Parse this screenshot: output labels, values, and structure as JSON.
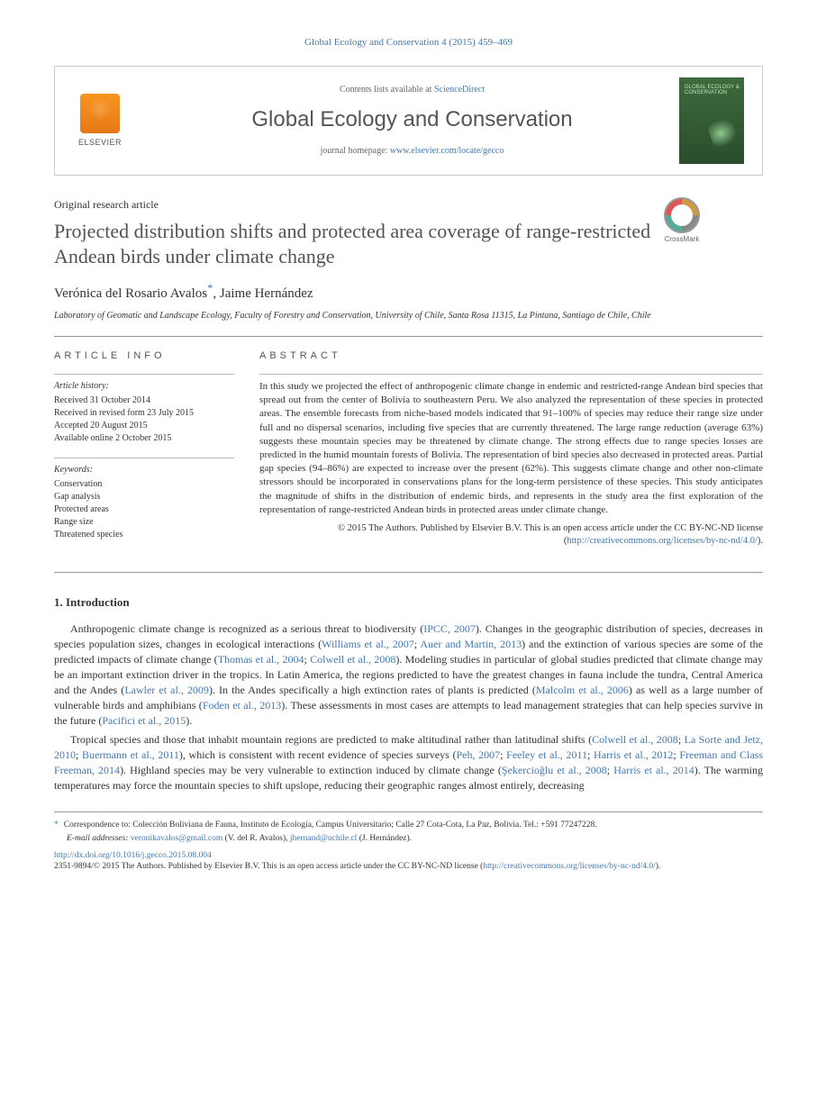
{
  "header": {
    "citation": "Global Ecology and Conservation 4 (2015) 459–469",
    "contents_prefix": "Contents lists available at ",
    "contents_link": "ScienceDirect",
    "journal_name": "Global Ecology and Conservation",
    "homepage_prefix": "journal homepage: ",
    "homepage_url": "www.elsevier.com/locate/gecco",
    "elsevier_label": "ELSEVIER",
    "cover_title": "GLOBAL\nECOLOGY &\nCONSERVATION"
  },
  "crossmark_label": "CrossMark",
  "article": {
    "type": "Original research article",
    "title": "Projected distribution shifts and protected area coverage of range-restricted Andean birds under climate change",
    "authors_html": "Verónica del Rosario Avalos",
    "corr_symbol": "*",
    "author2": ", Jaime Hernández",
    "affiliation": "Laboratory of Geomatic and Landscape Ecology, Faculty of Forestry and Conservation, University of Chile, Santa Rosa 11315, La Pintana, Santiago de Chile, Chile"
  },
  "info": {
    "heading": "article info",
    "history_label": "Article history:",
    "history": [
      "Received 31 October 2014",
      "Received in revised form 23 July 2015",
      "Accepted 20 August 2015",
      "Available online 2 October 2015"
    ],
    "keywords_label": "Keywords:",
    "keywords": [
      "Conservation",
      "Gap analysis",
      "Protected areas",
      "Range size",
      "Threatened species"
    ]
  },
  "abstract": {
    "heading": "abstract",
    "text": "In this study we projected the effect of anthropogenic climate change in endemic and restricted-range Andean bird species that spread out from the center of Bolivia to southeastern Peru. We also analyzed the representation of these species in protected areas. The ensemble forecasts from niche-based models indicated that 91–100% of species may reduce their range size under full and no dispersal scenarios, including five species that are currently threatened. The large range reduction (average 63%) suggests these mountain species may be threatened by climate change. The strong effects due to range species losses are predicted in the humid mountain forests of Bolivia. The representation of bird species also decreased in protected areas. Partial gap species (94–86%) are expected to increase over the present (62%). This suggests climate change and other non-climate stressors should be incorporated in conservations plans for the long-term persistence of these species. This study anticipates the magnitude of shifts in the distribution of endemic birds, and represents in the study area the first exploration of the representation of range-restricted Andean birds in protected areas under climate change.",
    "copyright": "© 2015 The Authors. Published by Elsevier B.V. This is an open access article under the CC BY-NC-ND license (",
    "license_url": "http://creativecommons.org/licenses/by-nc-nd/4.0/",
    "copyright_close": ")."
  },
  "section1": {
    "heading": "1. Introduction",
    "para1_parts": [
      "Anthropogenic climate change is recognized as a serious threat to biodiversity (",
      "IPCC, 2007",
      "). Changes in the geographic distribution of species, decreases in species population sizes, changes in ecological interactions (",
      "Williams et al., 2007",
      "; ",
      "Auer and Martin, 2013",
      ") and the extinction of various species are some of the predicted impacts of climate change (",
      "Thomas et al., 2004",
      "; ",
      "Colwell et al., 2008",
      "). Modeling studies in particular of global studies predicted that climate change may be an important extinction driver in the tropics. In Latin America, the regions predicted to have the greatest changes in fauna include the tundra, Central America and the Andes (",
      "Lawler et al., 2009",
      "). In the Andes specifically a high extinction rates of plants is predicted (",
      "Malcolm et al., 2006",
      ") as well as a large number of vulnerable birds and amphibians (",
      "Foden et al., 2013",
      "). These assessments in most cases are attempts to lead management strategies that can help species survive in the future (",
      "Pacifici et al., 2015",
      ")."
    ],
    "para2_parts": [
      "Tropical species and those that inhabit mountain regions are predicted to make altitudinal rather than latitudinal shifts (",
      "Colwell et al., 2008",
      "; ",
      "La Sorte and Jetz, 2010",
      "; ",
      "Buermann et al., 2011",
      "), which is consistent with recent evidence of species surveys (",
      "Peh, 2007",
      "; ",
      "Feeley et al., 2011",
      "; ",
      "Harris et al., 2012",
      "; ",
      "Freeman and Class Freeman, 2014",
      "). Highland species may be very vulnerable to extinction induced by climate change (",
      "Şekercioğlu et al., 2008",
      "; ",
      "Harris et al., 2014",
      "). The warming temperatures may force the mountain species to shift upslope, reducing their geographic ranges almost entirely, decreasing"
    ]
  },
  "footnotes": {
    "corr_mark": "*",
    "corr_text": "Correspondence to: Colección Boliviana de Fauna, Instituto de Ecología, Campus Universitario; Calle 27 Cota-Cota, La Paz, Bolivia. Tel.: +591 77247228.",
    "email_label": "E-mail addresses:",
    "email1": "veronikavalos@gmail.com",
    "email1_who": " (V. del R. Avalos), ",
    "email2": "jhernand@uchile.cl",
    "email2_who": " (J. Hernández).",
    "doi_url": "http://dx.doi.org/10.1016/j.gecco.2015.08.004",
    "issn_line": "2351-9894/© 2015 The Authors. Published by Elsevier B.V. This is an open access article under the CC BY-NC-ND license (",
    "license_url": "http://creativecommons.org/licenses/by-nc-nd/4.0/",
    "issn_close": ")."
  },
  "colors": {
    "link": "#4378b0",
    "text": "#333333",
    "heading_gray": "#535353",
    "elsevier_orange": "#f7941e",
    "cover_green": "#3d6b3d"
  }
}
